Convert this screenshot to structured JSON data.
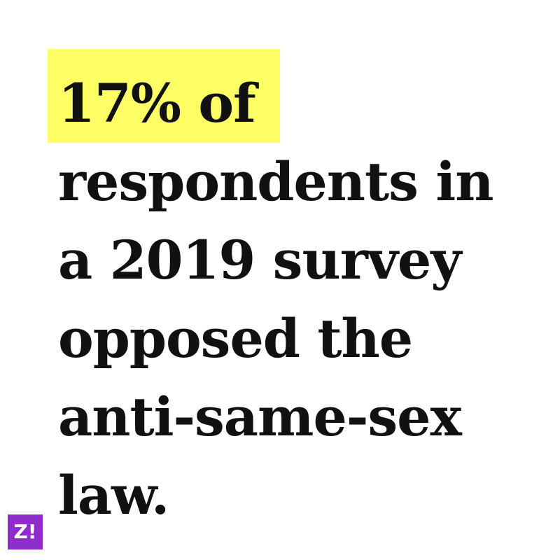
{
  "headline": {
    "lines": [
      "17% of",
      "respondents in",
      "a 2019 survey",
      "opposed the",
      "anti-same-sex",
      "law."
    ]
  },
  "colors": {
    "highlight": "#ffff66",
    "text": "#111111",
    "background": "#ffffff",
    "logo_background": "#8f2ccc"
  },
  "logo": {
    "text": "Z!"
  }
}
